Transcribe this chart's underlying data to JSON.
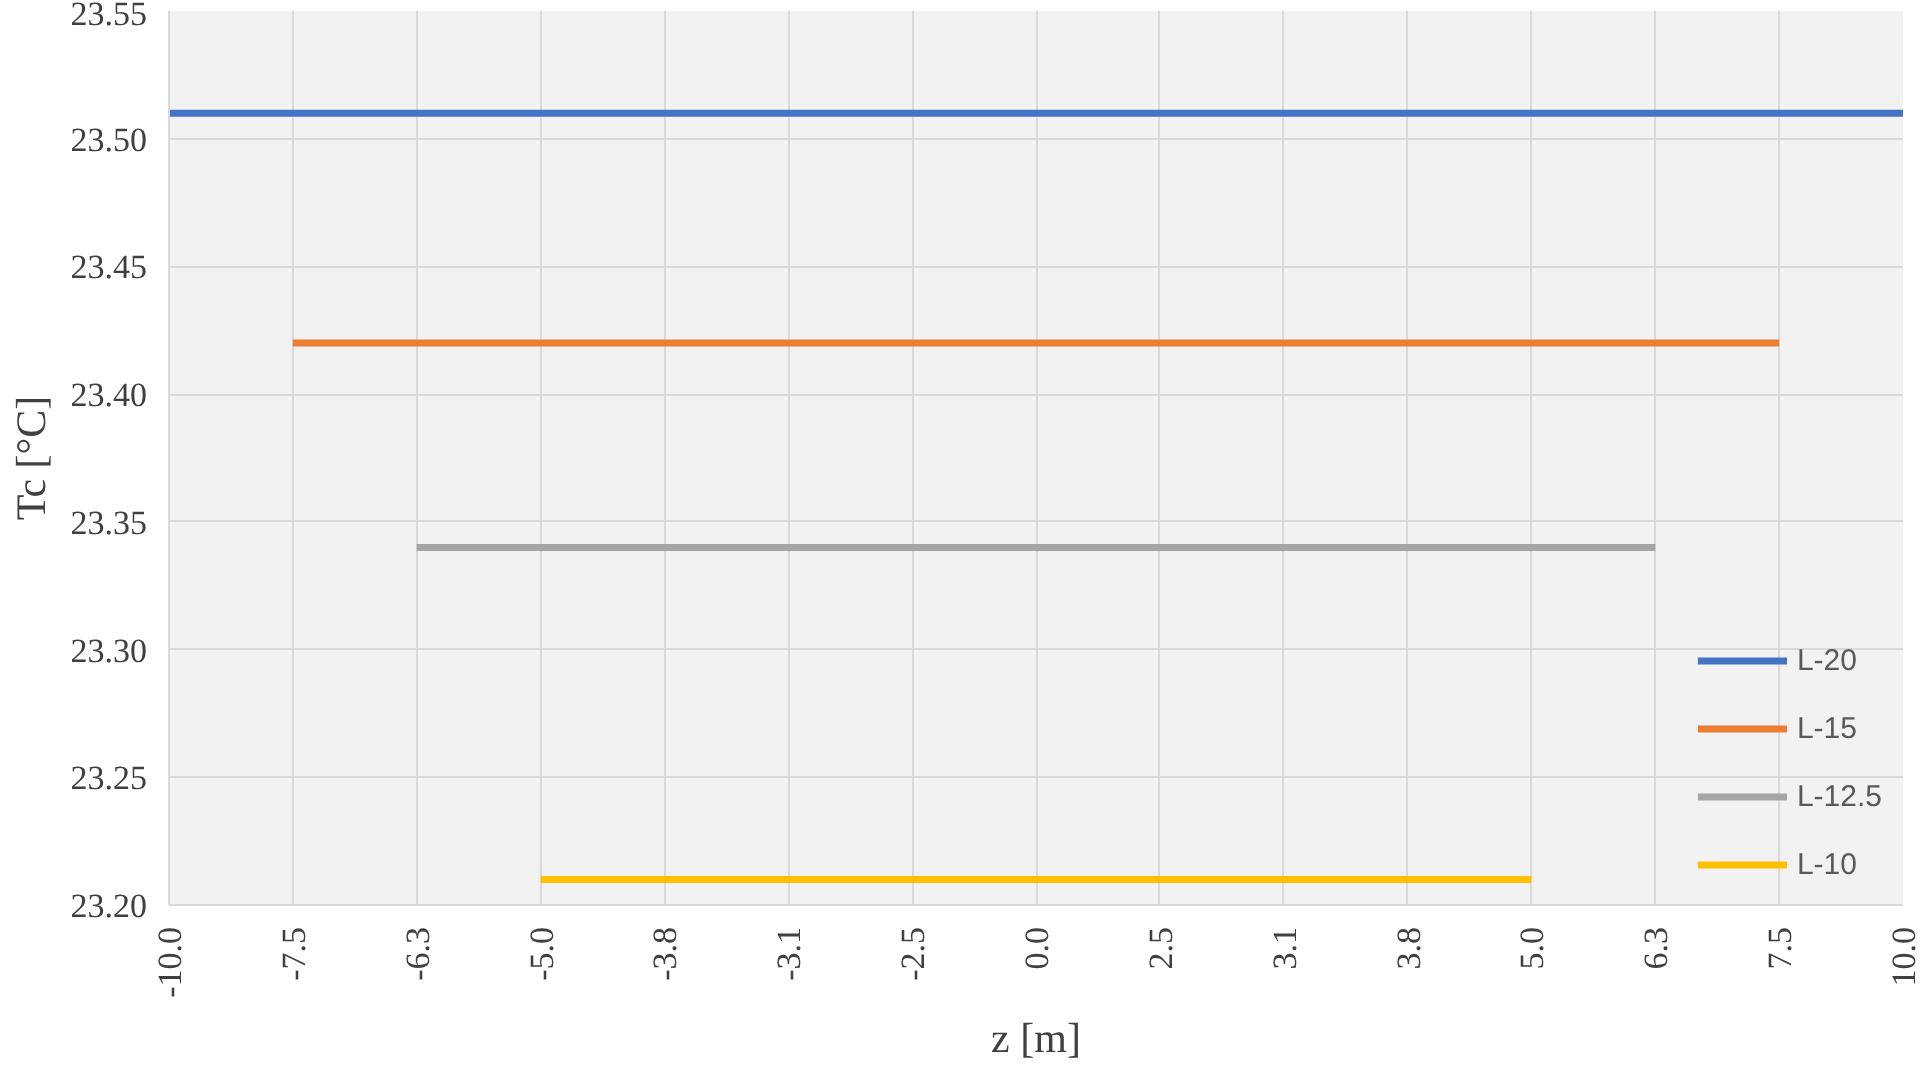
{
  "chart_data": {
    "type": "line",
    "xlabel": "z [m]",
    "ylabel": "Tc [°C]",
    "categories": [
      "-10.0",
      "-7.5",
      "-6.3",
      "-5.0",
      "-3.8",
      "-3.1",
      "-2.5",
      "0.0",
      "2.5",
      "3.1",
      "3.8",
      "5.0",
      "6.3",
      "7.5",
      "10.0"
    ],
    "series": [
      {
        "name": "L-20",
        "color": "#4472c4",
        "values": [
          23.51,
          23.51,
          23.51,
          23.51,
          23.51,
          23.51,
          23.51,
          23.51,
          23.51,
          23.51,
          23.51,
          23.51,
          23.51,
          23.51,
          23.51
        ]
      },
      {
        "name": "L-15",
        "color": "#ed7d31",
        "values": [
          null,
          23.42,
          23.42,
          23.42,
          23.42,
          23.42,
          23.42,
          23.42,
          23.42,
          23.42,
          23.42,
          23.42,
          23.42,
          23.42,
          null
        ]
      },
      {
        "name": "L-12.5",
        "color": "#a5a5a5",
        "values": [
          null,
          null,
          23.34,
          23.34,
          23.34,
          23.34,
          23.34,
          23.34,
          23.34,
          23.34,
          23.34,
          23.34,
          23.34,
          null,
          null
        ]
      },
      {
        "name": "L-10",
        "color": "#ffc000",
        "values": [
          null,
          null,
          null,
          23.21,
          23.21,
          23.21,
          23.21,
          23.21,
          23.21,
          23.21,
          23.21,
          23.21,
          null,
          null,
          null
        ]
      }
    ],
    "ylim": [
      23.2,
      23.55
    ],
    "yticks": [
      {
        "value": 23.2,
        "label": "23.20"
      },
      {
        "value": 23.25,
        "label": "23.25"
      },
      {
        "value": 23.3,
        "label": "23.30"
      },
      {
        "value": 23.35,
        "label": "23.35"
      },
      {
        "value": 23.4,
        "label": "23.40"
      },
      {
        "value": 23.45,
        "label": "23.45"
      },
      {
        "value": 23.5,
        "label": "23.50"
      },
      {
        "value": 23.55,
        "label": "23.55"
      }
    ],
    "grid": true,
    "legend": "bottom right",
    "marker": "none",
    "line_style": "solid"
  }
}
